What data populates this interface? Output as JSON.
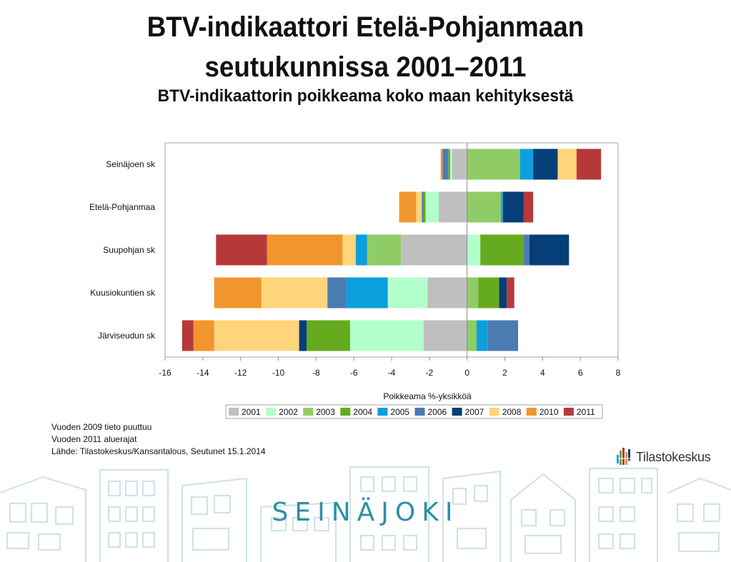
{
  "titles": {
    "line1": "BTV-indikaattori Etelä-Pohjanmaan",
    "line2": "seutukunnissa 2001–2011",
    "subtitle": "BTV-indikaattorin poikkeama koko maan kehityksestä"
  },
  "chart_data": {
    "type": "bar",
    "orientation": "horizontal",
    "stacked": true,
    "diverging": true,
    "categories": [
      "Seinäjoen sk",
      "Etelä-Pohjanmaa",
      "Suupohjan sk",
      "Kuusiokuntien sk",
      "Järviseudun sk"
    ],
    "series": [
      {
        "name": "2001",
        "color": "#bfbfbf",
        "values": [
          -0.8,
          -1.5,
          -3.5,
          -2.1,
          -2.3
        ]
      },
      {
        "name": "2002",
        "color": "#b3ffcc",
        "values": [
          -0.1,
          -0.7,
          0.7,
          -2.1,
          -3.9
        ]
      },
      {
        "name": "2003",
        "color": "#8fcc66",
        "values": [
          2.8,
          1.8,
          -1.8,
          0.6,
          0.5
        ]
      },
      {
        "name": "2004",
        "color": "#66aa1f",
        "values": [
          -0.1,
          -0.1,
          2.3,
          1.1,
          -2.3
        ]
      },
      {
        "name": "2005",
        "color": "#0c9fdd",
        "values": [
          0.7,
          0.1,
          -0.6,
          -2.2,
          0.6
        ]
      },
      {
        "name": "2006",
        "color": "#4a7bb1",
        "values": [
          -0.3,
          -0.1,
          0.3,
          -1.0,
          1.6
        ]
      },
      {
        "name": "2007",
        "color": "#063e78",
        "values": [
          1.3,
          1.1,
          2.1,
          0.4,
          -0.4
        ]
      },
      {
        "name": "2008",
        "color": "#ffd47a",
        "values": [
          1.0,
          -0.3,
          -0.7,
          -3.5,
          -4.5
        ]
      },
      {
        "name": "2010",
        "color": "#f0962d",
        "values": [
          -0.1,
          -0.9,
          -4.0,
          -2.5,
          -1.1
        ]
      },
      {
        "name": "2011",
        "color": "#b6393a",
        "values": [
          1.3,
          0.5,
          -2.7,
          0.4,
          -0.6
        ]
      }
    ],
    "xlabel": "Poikkeama %-yksikköä",
    "xlim": [
      -16,
      8
    ],
    "xticks": [
      -16,
      -14,
      -12,
      -10,
      -8,
      -6,
      -4,
      -2,
      0,
      2,
      4,
      6,
      8
    ],
    "grid": false,
    "legend_position": "bottom"
  },
  "notes": [
    "Vuoden 2009 tieto puuttuu",
    "Vuoden 2011 aluerajat",
    "Lähde: Tilastokeskus/Kansantalous, Seutunet 15.1.2014"
  ],
  "logo": {
    "text": "Tilastokeskus",
    "icon": "tilastokeskus-logo-icon"
  },
  "footer": {
    "city_name": "SEINÄJOKI",
    "illustration": "city-skyline-sketch"
  }
}
